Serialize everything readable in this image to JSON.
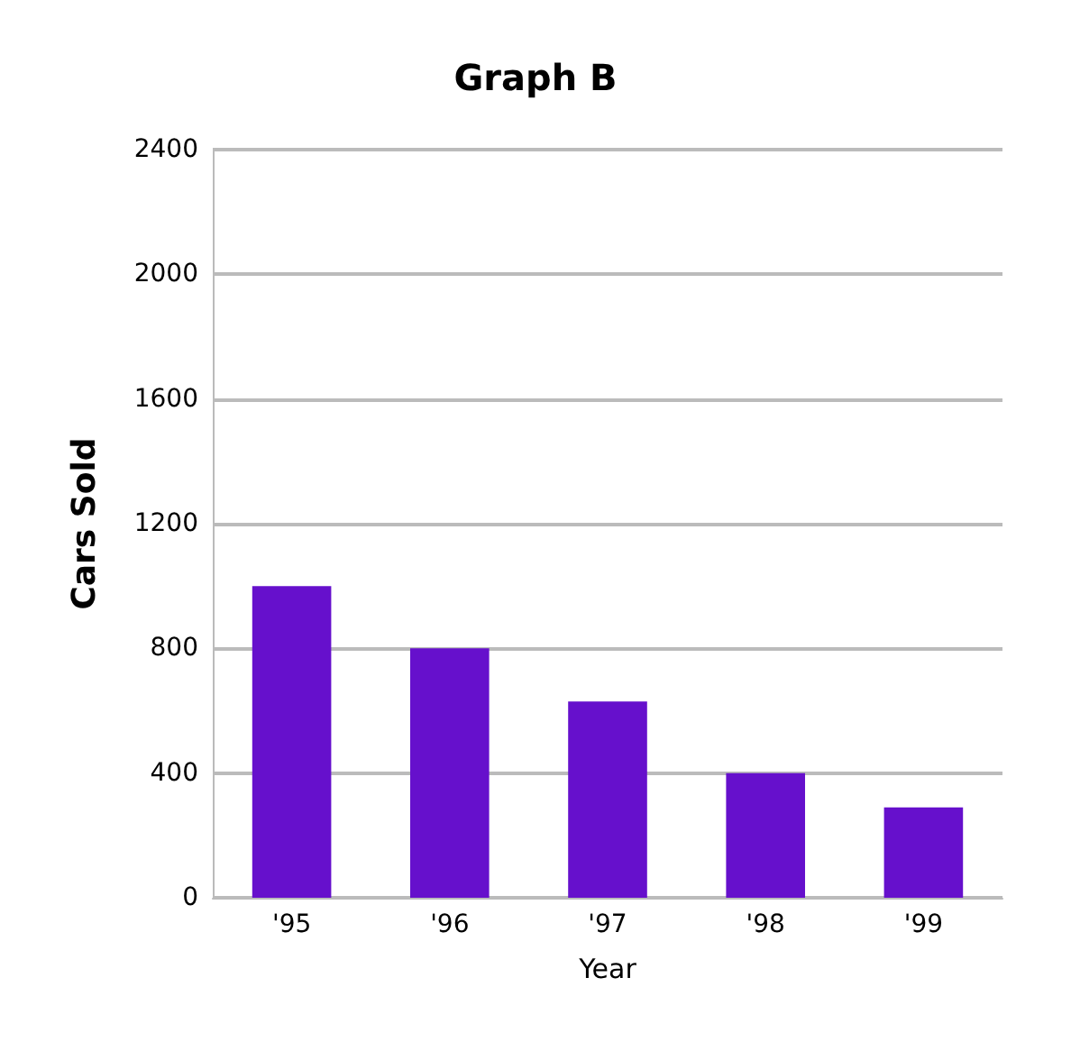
{
  "chart_data": {
    "type": "bar",
    "title": "Graph B",
    "xlabel": "Year",
    "ylabel": "Cars Sold",
    "categories": [
      "'95",
      "'96",
      "'97",
      "'98",
      "'99"
    ],
    "values": [
      1000,
      800,
      630,
      400,
      290
    ],
    "color": "#6610cc",
    "ylim": [
      0,
      2400
    ],
    "yticks": [
      0,
      400,
      800,
      1200,
      1600,
      2000,
      2400
    ],
    "grid": "y"
  }
}
